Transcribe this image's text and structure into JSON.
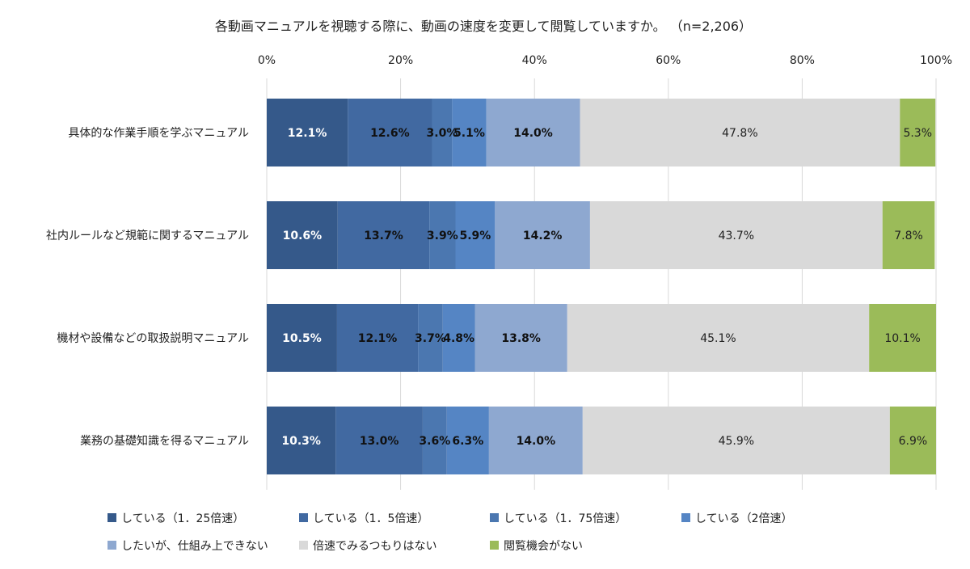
{
  "chart_data": {
    "type": "bar",
    "orientation": "horizontal",
    "stacked": true,
    "title": "各動画マニュアルを視聴する際に、動画の速度を変更して閲覧していますか。 （n=2,206）",
    "xlim": [
      0,
      100
    ],
    "x_ticks": [
      "0%",
      "20%",
      "40%",
      "60%",
      "80%",
      "100%"
    ],
    "grid": true,
    "legend_position": "bottom",
    "categories": [
      "具体的な作業手順を学ぶマニュアル",
      "社内ルールなど規範に関するマニュアル",
      "機材や設備などの取扱説明マニュアル",
      "業務の基礎知識を得るマニュアル"
    ],
    "series": [
      {
        "name": "している（1．25倍速）",
        "color": "#35598a",
        "label_color": "#ffffff",
        "label_weight": "bold",
        "values": [
          12.1,
          10.6,
          10.5,
          10.3
        ],
        "labels": [
          "12.1%",
          "10.6%",
          "10.5%",
          "10.3%"
        ]
      },
      {
        "name": "している（1．5倍速）",
        "color": "#4169a1",
        "label_color": "#111111",
        "label_weight": "bold",
        "values": [
          12.6,
          13.7,
          12.1,
          13.0
        ],
        "labels": [
          "12.6%",
          "13.7%",
          "12.1%",
          "13.0%"
        ]
      },
      {
        "name": "している（1．75倍速）",
        "color": "#4b77b0",
        "label_color": "#111111",
        "label_weight": "bold",
        "values": [
          3.0,
          3.9,
          3.7,
          3.6
        ],
        "labels": [
          "3.0%",
          "3.9%",
          "3.7%",
          "3.6%"
        ]
      },
      {
        "name": "している（2倍速）",
        "color": "#5585c4",
        "label_color": "#111111",
        "label_weight": "bold",
        "values": [
          5.1,
          5.9,
          4.8,
          6.3
        ],
        "labels": [
          "5.1%",
          "5.9%",
          "4.8%",
          "6.3%"
        ]
      },
      {
        "name": "したいが、仕組み上できない",
        "color": "#8ea8d0",
        "label_color": "#111111",
        "label_weight": "bold",
        "values": [
          14.0,
          14.2,
          13.8,
          14.0
        ],
        "labels": [
          "14.0%",
          "14.2%",
          "13.8%",
          "14.0%"
        ]
      },
      {
        "name": "倍速でみるつもりはない",
        "color": "#d9d9d9",
        "label_color": "#222222",
        "label_weight": "normal",
        "values": [
          47.8,
          43.7,
          45.1,
          45.9
        ],
        "labels": [
          "47.8%",
          "43.7%",
          "45.1%",
          "45.9%"
        ]
      },
      {
        "name": "閲覧機会がない",
        "color": "#9bbb59",
        "label_color": "#222222",
        "label_weight": "normal",
        "values": [
          5.3,
          7.8,
          10.1,
          6.9
        ],
        "labels": [
          "5.3%",
          "7.8%",
          "10.1%",
          "6.9%"
        ]
      }
    ]
  }
}
